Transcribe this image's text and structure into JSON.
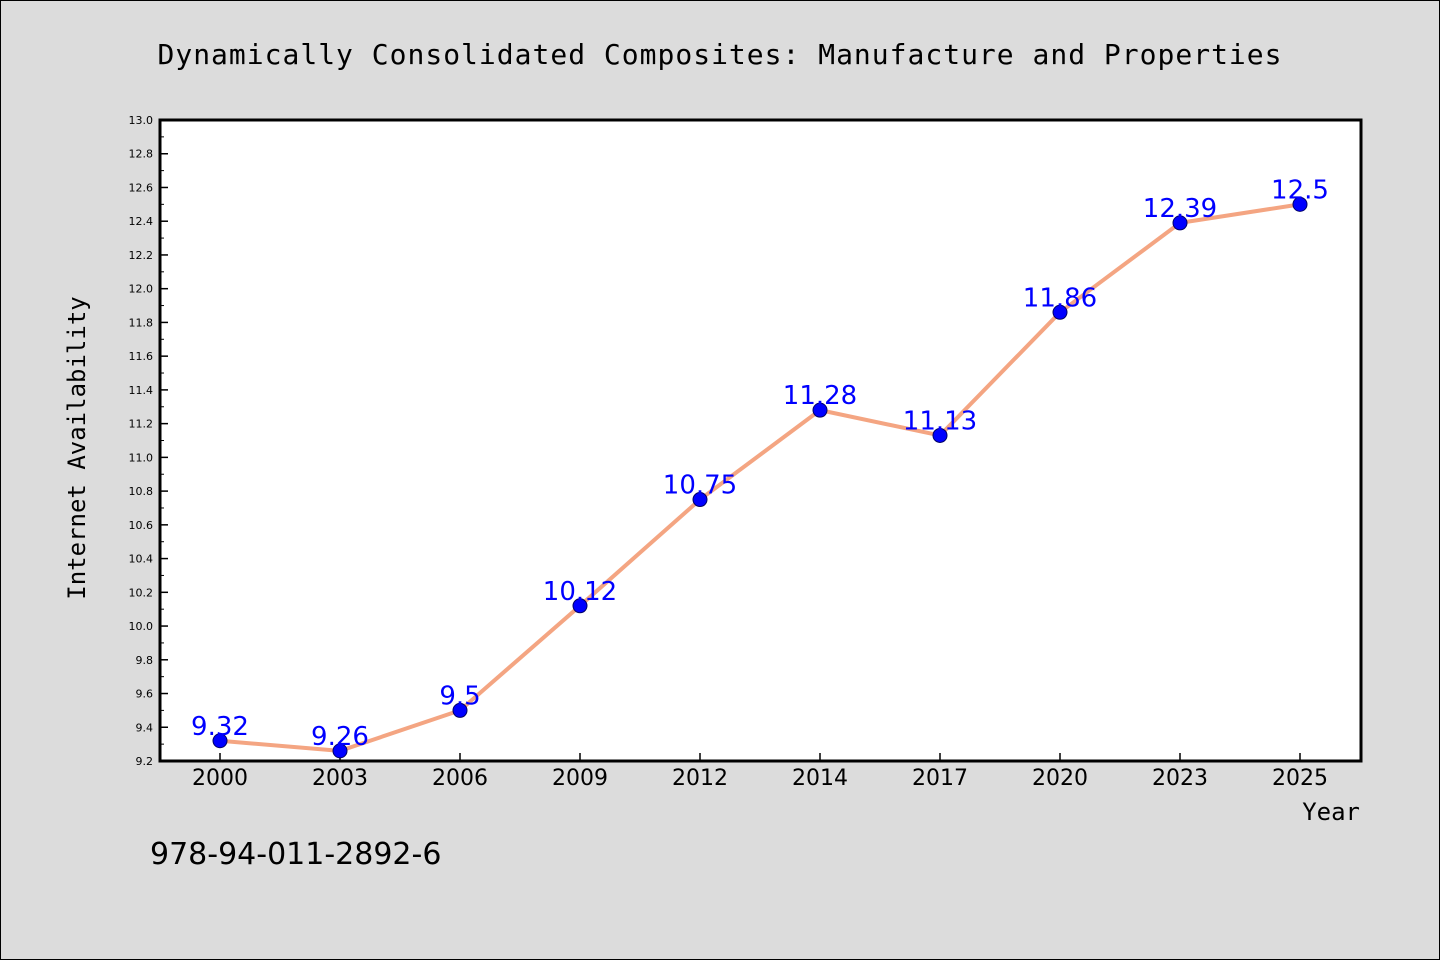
{
  "chart_data": {
    "type": "line",
    "title": "Dynamically Consolidated Composites: Manufacture and Properties",
    "xlabel": "Year",
    "ylabel": "Internet Availability",
    "categories": [
      "2000",
      "2003",
      "2006",
      "2009",
      "2012",
      "2014",
      "2017",
      "2020",
      "2023",
      "2025"
    ],
    "series": [
      {
        "values": [
          9.32,
          9.26,
          9.5,
          10.12,
          10.75,
          11.28,
          11.13,
          11.86,
          12.39,
          12.5
        ],
        "data_labels": [
          "9.32",
          "9.26",
          "9.5",
          "10.12",
          "10.75",
          "11.28",
          "11.13",
          "11.86",
          "12.39",
          "12.5"
        ],
        "line_color": "#f4a582",
        "marker_color": "#0000ff",
        "label_color": "#0000ff"
      }
    ],
    "ylim": [
      9.2,
      13.0
    ],
    "y_ticks": [
      "9.2",
      "9.4",
      "9.6",
      "9.8",
      "10.0",
      "10.2",
      "10.4",
      "10.6",
      "10.8",
      "11.0",
      "11.2",
      "11.4",
      "11.6",
      "11.8",
      "12.0",
      "12.2",
      "12.4",
      "12.6",
      "12.8",
      "13.0"
    ],
    "grid": false,
    "legend": "none"
  },
  "footer": {
    "isbn": "978-94-011-2892-6"
  }
}
